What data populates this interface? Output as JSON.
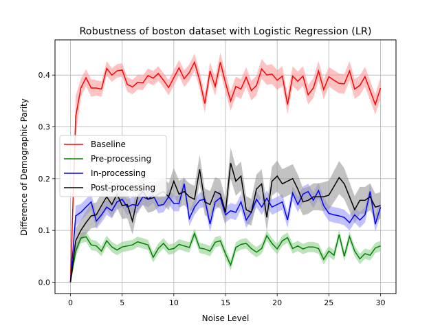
{
  "chart_data": {
    "type": "line",
    "title": "Robustness of boston dataset with Logistic Regression (LR)",
    "xlabel": "Noise Level",
    "ylabel": "Difference of Demographic Parity",
    "xlim": [
      -1.5,
      31.5
    ],
    "ylim": [
      -0.022,
      0.468
    ],
    "xticks": [
      0,
      5,
      10,
      15,
      20,
      25,
      30
    ],
    "yticks": [
      0.0,
      0.1,
      0.2,
      0.3,
      0.4
    ],
    "ytick_labels": [
      "0.0",
      "0.1",
      "0.2",
      "0.3",
      "0.4"
    ],
    "grid": true,
    "legend_position": "center-left",
    "x": [
      0,
      0.5,
      1,
      1.5,
      2,
      2.5,
      3,
      3.5,
      4,
      4.5,
      5,
      5.5,
      6,
      6.5,
      7,
      7.5,
      8,
      8.5,
      9,
      9.5,
      10,
      10.5,
      11,
      11.5,
      12,
      12.5,
      13,
      13.5,
      14,
      14.5,
      15,
      15.5,
      16,
      16.5,
      17,
      17.5,
      18,
      18.5,
      19,
      19.5,
      20,
      20.5,
      21,
      21.5,
      22,
      22.5,
      23,
      23.5,
      24,
      24.5,
      25,
      25.5,
      26,
      26.5,
      27,
      27.5,
      28,
      28.5,
      29,
      29.5,
      30
    ],
    "series": [
      {
        "name": "Baseline",
        "color": "#ff0000",
        "band_color": "#ff9999",
        "values": [
          0.0,
          0.32,
          0.375,
          0.395,
          0.375,
          0.375,
          0.373,
          0.413,
          0.4,
          0.408,
          0.41,
          0.382,
          0.377,
          0.386,
          0.385,
          0.399,
          0.394,
          0.403,
          0.39,
          0.376,
          0.395,
          0.414,
          0.393,
          0.405,
          0.425,
          0.39,
          0.345,
          0.408,
          0.378,
          0.425,
          0.385,
          0.35,
          0.378,
          0.373,
          0.396,
          0.37,
          0.38,
          0.412,
          0.4,
          0.402,
          0.39,
          0.398,
          0.343,
          0.398,
          0.388,
          0.398,
          0.362,
          0.375,
          0.408,
          0.372,
          0.397,
          0.39,
          0.384,
          0.383,
          0.408,
          0.373,
          0.38,
          0.397,
          0.37,
          0.343,
          0.375
        ],
        "band": [
          0.0,
          0.04,
          0.018,
          0.016,
          0.017,
          0.015,
          0.015,
          0.014,
          0.013,
          0.013,
          0.013,
          0.014,
          0.014,
          0.014,
          0.014,
          0.014,
          0.014,
          0.014,
          0.014,
          0.015,
          0.015,
          0.015,
          0.016,
          0.016,
          0.016,
          0.017,
          0.018,
          0.017,
          0.018,
          0.018,
          0.019,
          0.019,
          0.019,
          0.019,
          0.019,
          0.019,
          0.019,
          0.019,
          0.019,
          0.019,
          0.019,
          0.019,
          0.019,
          0.019,
          0.019,
          0.019,
          0.019,
          0.019,
          0.019,
          0.019,
          0.019,
          0.019,
          0.019,
          0.019,
          0.019,
          0.019,
          0.019,
          0.019,
          0.019,
          0.019,
          0.02
        ]
      },
      {
        "name": "Pre-processing",
        "color": "#008000",
        "band_color": "#90d090",
        "values": [
          0.0,
          0.06,
          0.085,
          0.088,
          0.072,
          0.07,
          0.06,
          0.08,
          0.068,
          0.062,
          0.068,
          0.07,
          0.072,
          0.078,
          0.075,
          0.072,
          0.048,
          0.065,
          0.075,
          0.063,
          0.065,
          0.073,
          0.07,
          0.067,
          0.094,
          0.066,
          0.064,
          0.06,
          0.077,
          0.08,
          0.055,
          0.033,
          0.067,
          0.073,
          0.075,
          0.065,
          0.058,
          0.065,
          0.09,
          0.075,
          0.064,
          0.08,
          0.086,
          0.065,
          0.07,
          0.064,
          0.068,
          0.068,
          0.065,
          0.044,
          0.06,
          0.052,
          0.092,
          0.05,
          0.088,
          0.06,
          0.045,
          0.055,
          0.052,
          0.066,
          0.07
        ],
        "band": [
          0.0,
          0.012,
          0.01,
          0.01,
          0.01,
          0.01,
          0.01,
          0.01,
          0.01,
          0.01,
          0.01,
          0.01,
          0.01,
          0.01,
          0.01,
          0.01,
          0.01,
          0.01,
          0.01,
          0.01,
          0.01,
          0.01,
          0.01,
          0.01,
          0.01,
          0.01,
          0.01,
          0.01,
          0.01,
          0.01,
          0.01,
          0.01,
          0.01,
          0.01,
          0.01,
          0.01,
          0.01,
          0.01,
          0.01,
          0.01,
          0.01,
          0.01,
          0.01,
          0.01,
          0.01,
          0.01,
          0.01,
          0.01,
          0.01,
          0.01,
          0.01,
          0.01,
          0.01,
          0.01,
          0.01,
          0.01,
          0.01,
          0.01,
          0.01,
          0.01,
          0.01
        ]
      },
      {
        "name": "In-processing",
        "color": "#0000ff",
        "band_color": "#9999ff",
        "values": [
          0.0,
          0.128,
          0.135,
          0.145,
          0.155,
          0.118,
          0.13,
          0.145,
          0.138,
          0.155,
          0.16,
          0.145,
          0.15,
          0.148,
          0.165,
          0.16,
          0.168,
          0.148,
          0.15,
          0.165,
          0.152,
          0.152,
          0.19,
          0.123,
          0.145,
          0.158,
          0.16,
          0.112,
          0.155,
          0.163,
          0.13,
          0.138,
          0.135,
          0.155,
          0.12,
          0.135,
          0.16,
          0.145,
          0.162,
          0.145,
          0.15,
          0.155,
          0.12,
          0.172,
          0.15,
          0.17,
          0.175,
          0.158,
          0.177,
          0.148,
          0.133,
          0.13,
          0.128,
          0.125,
          0.115,
          0.13,
          0.12,
          0.13,
          0.175,
          0.112,
          0.145
        ],
        "band": [
          0.0,
          0.02,
          0.016,
          0.016,
          0.016,
          0.015,
          0.015,
          0.015,
          0.015,
          0.015,
          0.015,
          0.015,
          0.015,
          0.015,
          0.015,
          0.015,
          0.015,
          0.015,
          0.015,
          0.015,
          0.015,
          0.015,
          0.015,
          0.015,
          0.015,
          0.015,
          0.015,
          0.015,
          0.015,
          0.015,
          0.015,
          0.015,
          0.015,
          0.015,
          0.015,
          0.015,
          0.015,
          0.015,
          0.015,
          0.015,
          0.015,
          0.015,
          0.015,
          0.015,
          0.015,
          0.015,
          0.015,
          0.015,
          0.015,
          0.015,
          0.015,
          0.015,
          0.015,
          0.015,
          0.015,
          0.015,
          0.015,
          0.015,
          0.015,
          0.015,
          0.016
        ]
      },
      {
        "name": "Post-processing",
        "color": "#000000",
        "band_color": "#999999",
        "values": [
          0.0,
          0.08,
          0.1,
          0.115,
          0.128,
          0.13,
          0.148,
          0.165,
          0.15,
          0.17,
          0.148,
          0.15,
          0.118,
          0.165,
          0.175,
          0.16,
          0.163,
          0.17,
          0.175,
          0.165,
          0.195,
          0.17,
          0.175,
          0.165,
          0.16,
          0.218,
          0.155,
          0.15,
          0.175,
          0.17,
          0.135,
          0.23,
          0.195,
          0.205,
          0.14,
          0.135,
          0.18,
          0.19,
          0.125,
          0.195,
          0.205,
          0.19,
          0.195,
          0.2,
          0.18,
          0.155,
          0.158,
          0.165,
          0.165,
          0.165,
          0.168,
          0.185,
          0.202,
          0.19,
          0.165,
          0.14,
          0.158,
          0.158,
          0.165,
          0.145,
          0.148
        ],
        "band": [
          0.0,
          0.025,
          0.02,
          0.022,
          0.024,
          0.024,
          0.025,
          0.025,
          0.025,
          0.026,
          0.026,
          0.026,
          0.026,
          0.026,
          0.026,
          0.026,
          0.026,
          0.026,
          0.026,
          0.026,
          0.026,
          0.026,
          0.026,
          0.026,
          0.026,
          0.028,
          0.026,
          0.026,
          0.028,
          0.028,
          0.026,
          0.03,
          0.028,
          0.028,
          0.026,
          0.026,
          0.028,
          0.028,
          0.026,
          0.028,
          0.03,
          0.028,
          0.028,
          0.028,
          0.028,
          0.026,
          0.026,
          0.026,
          0.026,
          0.028,
          0.028,
          0.03,
          0.032,
          0.03,
          0.028,
          0.026,
          0.026,
          0.026,
          0.026,
          0.026,
          0.026
        ]
      }
    ]
  }
}
